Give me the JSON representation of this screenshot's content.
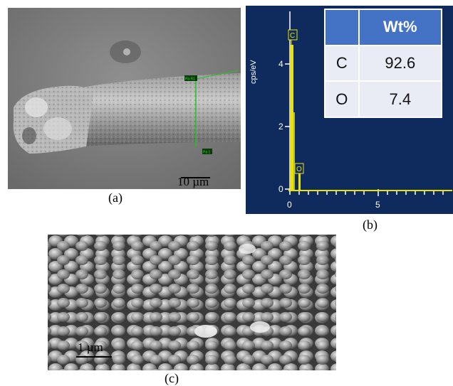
{
  "captions": {
    "a": "(a)",
    "b": "(b)",
    "c": "(c)"
  },
  "panel_a": {
    "scale_bar_label": "10 µm",
    "markers": [
      "Pa R1",
      "Pa 1"
    ]
  },
  "panel_b": {
    "y_axis_label": "cps/eV",
    "y_ticks": [
      "0",
      "2",
      "4"
    ],
    "x_ticks": [
      "0",
      "5"
    ],
    "peak_labels": [
      "C",
      "O"
    ],
    "table": {
      "header": [
        "",
        "Wt%"
      ],
      "rows": [
        {
          "element": "C",
          "value": "92.6"
        },
        {
          "element": "O",
          "value": "7.4"
        }
      ]
    },
    "colors": {
      "background": "#0f2a5c",
      "spectrum": "#e8e400",
      "axis": "#ffffff"
    }
  },
  "panel_c": {
    "scale_bar_label": "1 µm"
  }
}
